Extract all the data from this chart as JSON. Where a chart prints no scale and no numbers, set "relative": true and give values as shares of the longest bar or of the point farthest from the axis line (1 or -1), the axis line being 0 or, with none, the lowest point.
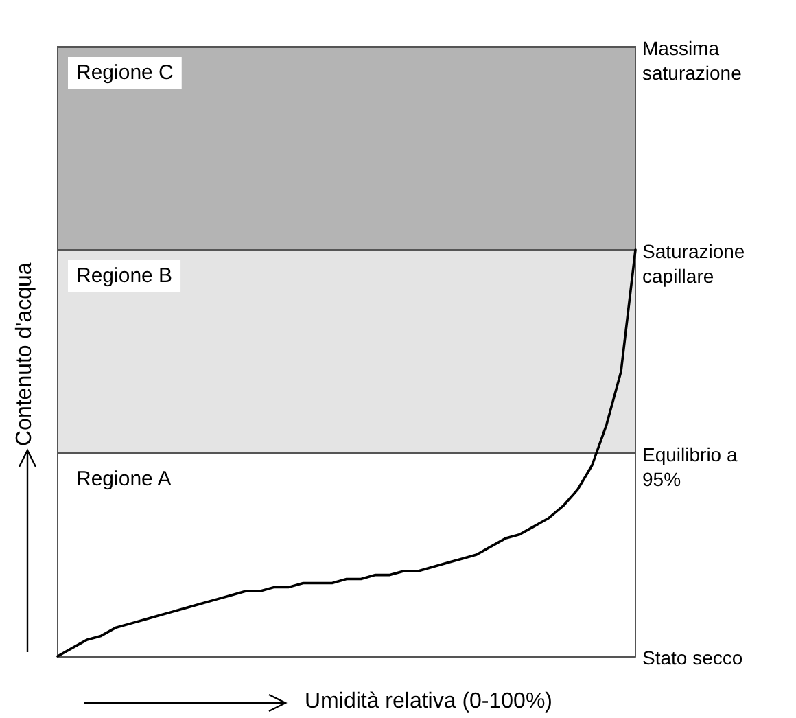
{
  "chart_data": {
    "type": "line",
    "relative": true,
    "xlabel": "Umidità relativa (0-100%)",
    "ylabel": "Contenuto d'acqua",
    "categories": [
      null,
      null,
      null,
      null,
      null,
      null,
      null,
      null,
      null,
      null,
      null,
      null,
      null,
      null,
      null,
      null,
      null,
      null,
      null,
      null,
      null,
      null,
      null,
      null,
      null,
      null,
      null,
      null,
      null,
      null,
      null,
      null,
      null,
      null,
      null,
      null,
      null,
      null,
      null,
      null,
      null
    ],
    "series": [
      {
        "color": "#000000",
        "values": [
          0,
          0.02,
          0.04,
          0.05,
          0.07,
          0.08,
          0.09,
          0.1,
          0.11,
          0.12,
          0.13,
          0.14,
          0.15,
          0.16,
          0.16,
          0.17,
          0.17,
          0.18,
          0.18,
          0.18,
          0.19,
          0.19,
          0.2,
          0.2,
          0.21,
          0.21,
          0.22,
          0.23,
          0.24,
          0.25,
          0.27,
          0.29,
          0.3,
          0.32,
          0.34,
          0.37,
          0.41,
          0.47,
          0.57,
          0.7,
          1
        ]
      }
    ],
    "marker": "none",
    "line_style": "solid",
    "bands": [
      {
        "axis": "y",
        "from": 0,
        "to": 0.5,
        "label": "Regione A",
        "color": "#ffffff"
      },
      {
        "axis": "y",
        "from": 0.5,
        "to": 1,
        "label": "Regione B",
        "color": "#e4e4e4"
      },
      {
        "axis": "y",
        "from": 1,
        "to": 1.5,
        "label": "Regione C",
        "color": "#b4b4b4"
      }
    ],
    "ref_lines": [
      {
        "axis": "y",
        "value": 1.5,
        "label": "Massima saturazione"
      },
      {
        "axis": "y",
        "value": 1,
        "label": "Saturazione capillare"
      },
      {
        "axis": "y",
        "value": 0.5,
        "label": "Equilibrio a 95%"
      },
      {
        "axis": "y",
        "value": 0,
        "label": "Stato secco"
      }
    ]
  }
}
